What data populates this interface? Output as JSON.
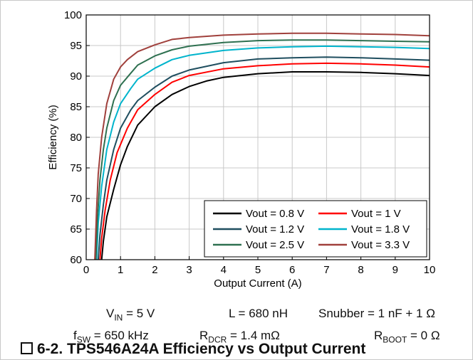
{
  "chart_data": {
    "type": "line",
    "title": "",
    "xlabel": "Output Current (A)",
    "ylabel": "Efficiency (%)",
    "xlim": [
      0,
      10
    ],
    "ylim": [
      60,
      100
    ],
    "xticks": [
      "0",
      "1",
      "2",
      "3",
      "4",
      "5",
      "6",
      "7",
      "8",
      "9",
      "10"
    ],
    "yticks": [
      "60",
      "65",
      "70",
      "75",
      "80",
      "85",
      "90",
      "95",
      "100"
    ],
    "grid": true,
    "legend_position": "bottom-right",
    "series": [
      {
        "name": "Vout = 0.8 V",
        "color": "#000000",
        "x": [
          0.45,
          0.5,
          0.6,
          0.8,
          1.0,
          1.2,
          1.5,
          2.0,
          2.5,
          3.0,
          3.5,
          4.0,
          5.0,
          6.0,
          7.0,
          8.0,
          9.0,
          10.0
        ],
        "y": [
          60,
          63,
          67,
          71.5,
          75.5,
          78.5,
          82,
          85,
          87,
          88.3,
          89.2,
          89.8,
          90.4,
          90.7,
          90.7,
          90.6,
          90.4,
          90.1
        ]
      },
      {
        "name": "Vout = 1 V",
        "color": "#ff0000",
        "x": [
          0.4,
          0.45,
          0.55,
          0.7,
          0.9,
          1.2,
          1.5,
          2.0,
          2.5,
          3.0,
          4.0,
          5.0,
          6.0,
          7.0,
          8.0,
          9.0,
          10.0
        ],
        "y": [
          60,
          63.5,
          68,
          73,
          77.5,
          81.5,
          84.5,
          87,
          89,
          90.1,
          91.2,
          91.7,
          92.0,
          92.1,
          92.0,
          91.8,
          91.5
        ]
      },
      {
        "name": "Vout = 1.2 V",
        "color": "#1f4e5f",
        "x": [
          0.35,
          0.4,
          0.5,
          0.6,
          0.8,
          1.0,
          1.3,
          1.5,
          2.0,
          2.5,
          3.0,
          4.0,
          5.0,
          6.0,
          7.0,
          8.0,
          9.0,
          10.0
        ],
        "y": [
          60,
          64,
          69,
          73,
          78,
          81.5,
          84.5,
          86,
          88.2,
          90,
          91,
          92.2,
          92.8,
          93.0,
          93.1,
          93.0,
          92.8,
          92.6
        ]
      },
      {
        "name": "Vout = 1.8 V",
        "color": "#00b4cc",
        "x": [
          0.3,
          0.35,
          0.45,
          0.6,
          0.8,
          1.0,
          1.3,
          1.5,
          2.0,
          2.5,
          3.0,
          4.0,
          5.0,
          6.0,
          7.0,
          8.0,
          9.0,
          10.0
        ],
        "y": [
          60,
          66,
          72,
          78,
          82.5,
          85.5,
          88,
          89.5,
          91.3,
          92.7,
          93.4,
          94.2,
          94.6,
          94.8,
          94.9,
          94.8,
          94.7,
          94.5
        ]
      },
      {
        "name": "Vout = 2.5 V",
        "color": "#2e7050",
        "x": [
          0.28,
          0.33,
          0.4,
          0.5,
          0.6,
          0.8,
          1.0,
          1.3,
          1.5,
          2.0,
          2.5,
          3.0,
          4.0,
          5.0,
          6.0,
          7.0,
          8.0,
          9.0,
          10.0
        ],
        "y": [
          60,
          67,
          73,
          78,
          81.5,
          86,
          88.5,
          90.5,
          91.8,
          93.3,
          94.3,
          94.9,
          95.5,
          95.8,
          95.9,
          95.9,
          95.8,
          95.7,
          95.6
        ]
      },
      {
        "name": "Vout = 3.3 V",
        "color": "#a0403c",
        "x": [
          0.25,
          0.3,
          0.35,
          0.45,
          0.6,
          0.8,
          1.0,
          1.2,
          1.5,
          2.0,
          2.5,
          3.0,
          4.0,
          5.0,
          6.0,
          7.0,
          8.0,
          9.0,
          10.0
        ],
        "y": [
          60,
          68,
          74,
          80,
          85.5,
          89.5,
          91.5,
          92.7,
          94,
          95.1,
          96,
          96.3,
          96.7,
          96.9,
          97.0,
          97.0,
          96.9,
          96.8,
          96.6
        ]
      }
    ]
  },
  "conditions": {
    "vin": {
      "sym": "V",
      "sub": "IN",
      "rest": " = 5 V"
    },
    "l": "L = 680 nH",
    "snubber": "Snubber = 1 nF + 1 Ω",
    "fsw": {
      "sym": "f",
      "sub": "SW",
      "rest": " = 650 kHz"
    },
    "rdcr": {
      "sym": "R",
      "sub": "DCR",
      "rest": " = 1.4 mΩ"
    },
    "rboot": {
      "sym": "R",
      "sub": "BOOT",
      "rest": " = 0 Ω"
    }
  },
  "caption": "6-2. TPS546A24A Efficiency vs Output Current"
}
